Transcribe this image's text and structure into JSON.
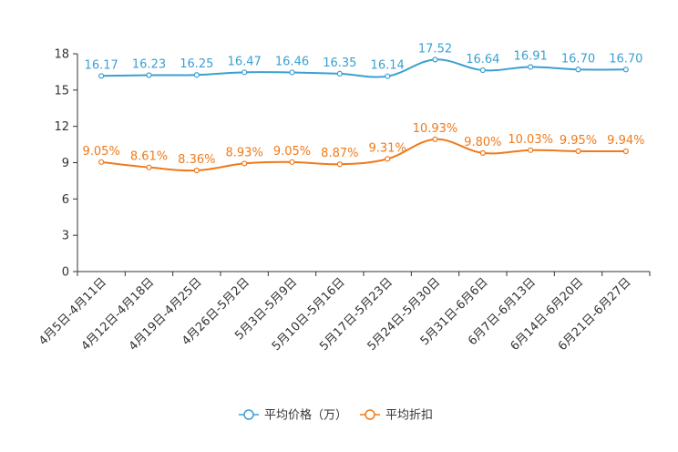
{
  "chart_data": {
    "type": "line",
    "categories": [
      "4月5日-4月11日",
      "4月12日-4月18日",
      "4月19日-4月25日",
      "4月26日-5月2日",
      "5月3日-5月9日",
      "5月10日-5月16日",
      "5月17日-5月23日",
      "5月24日-5月30日",
      "5月31日-6月6日",
      "6月7日-6月13日",
      "6月14日-6月20日",
      "6月21日-6月27日"
    ],
    "ylim": [
      0,
      18
    ],
    "yticks": [
      0,
      3,
      6,
      9,
      12,
      15,
      18
    ],
    "series": [
      {
        "name": "平均价格（万）",
        "color": "#3ba0d0",
        "values": [
          16.17,
          16.23,
          16.25,
          16.47,
          16.46,
          16.35,
          16.14,
          17.52,
          16.64,
          16.91,
          16.7,
          16.7
        ],
        "labels": [
          "16.17",
          "16.23",
          "16.25",
          "16.47",
          "16.46",
          "16.35",
          "16.14",
          "17.52",
          "16.64",
          "16.91",
          "16.70",
          "16.70"
        ]
      },
      {
        "name": "平均折扣",
        "color": "#f07a1a",
        "values": [
          9.05,
          8.61,
          8.36,
          8.93,
          9.05,
          8.87,
          9.31,
          10.93,
          9.8,
          10.03,
          9.95,
          9.94
        ],
        "labels": [
          "9.05%",
          "8.61%",
          "8.36%",
          "8.93%",
          "9.05%",
          "8.87%",
          "9.31%",
          "10.93%",
          "9.80%",
          "10.03%",
          "9.95%",
          "9.94%"
        ]
      }
    ],
    "legend_position": "bottom-center"
  }
}
